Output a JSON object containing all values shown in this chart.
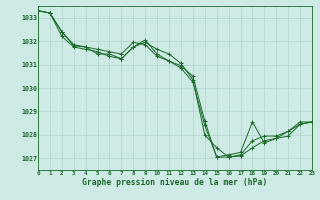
{
  "background_color": "#ceeae4",
  "grid_color": "#b0d4ce",
  "line_color": "#1a6b2a",
  "marker_color": "#1a6b2a",
  "title": "Graphe pression niveau de la mer (hPa)",
  "xlim": [
    0,
    23
  ],
  "ylim": [
    1026.5,
    1033.5
  ],
  "yticks": [
    1027,
    1028,
    1029,
    1030,
    1031,
    1032,
    1033
  ],
  "xticks": [
    0,
    1,
    2,
    3,
    4,
    5,
    6,
    7,
    8,
    9,
    10,
    11,
    12,
    13,
    14,
    15,
    16,
    17,
    18,
    19,
    20,
    21,
    22,
    23
  ],
  "series": [
    [
      1033.3,
      1033.2,
      1032.4,
      1031.8,
      1031.75,
      1031.65,
      1031.55,
      1031.45,
      1031.95,
      1031.85,
      1031.35,
      1031.15,
      1030.95,
      1030.5,
      1028.6,
      1027.05,
      1027.05,
      1027.1,
      1027.45,
      1027.75,
      1027.85,
      1027.95,
      1028.45,
      1028.55
    ],
    [
      1033.3,
      1033.2,
      1032.4,
      1031.85,
      1031.75,
      1031.45,
      1031.45,
      1031.25,
      1031.75,
      1031.95,
      1031.65,
      1031.45,
      1031.05,
      1030.35,
      1028.0,
      1027.45,
      1027.05,
      1027.15,
      1027.75,
      1027.95,
      1027.95,
      1028.15,
      1028.55,
      1028.55
    ],
    [
      1033.3,
      1033.2,
      1032.2,
      1031.75,
      1031.65,
      1031.55,
      1031.35,
      1031.25,
      1031.75,
      1032.05,
      1031.45,
      1031.15,
      1030.85,
      1030.25,
      1028.4,
      1027.05,
      1027.15,
      1027.25,
      1028.55,
      1027.65,
      1027.85,
      1028.15,
      1028.45,
      1028.55
    ]
  ]
}
